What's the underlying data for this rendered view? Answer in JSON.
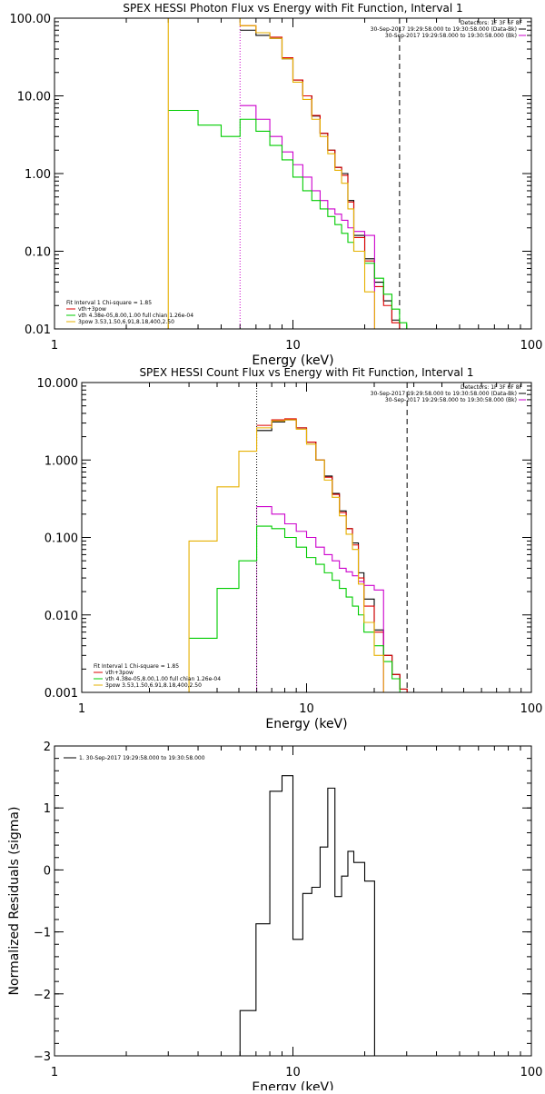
{
  "chart_data": [
    {
      "type": "line",
      "title": "SPEX HESSI Photon Flux vs Energy with Fit Function, Interval 1",
      "xlabel": "Energy (keV)",
      "ylabel": "",
      "xscale": "log",
      "yscale": "log",
      "xlim": [
        1,
        100
      ],
      "ylim": [
        0.01,
        100
      ],
      "xtick_labels": [
        {
          "v": 1,
          "t": "1"
        },
        {
          "v": 10,
          "t": "10"
        },
        {
          "v": 100,
          "t": "100"
        }
      ],
      "ytick_labels": [
        {
          "v": 0.01,
          "t": "0.01"
        },
        {
          "v": 0.1,
          "t": "0.10"
        },
        {
          "v": 1,
          "t": "1.00"
        },
        {
          "v": 10,
          "t": "10.00"
        },
        {
          "v": 100,
          "t": "100.00"
        }
      ],
      "edges": [
        3,
        4,
        5,
        6,
        7,
        8,
        9,
        10,
        11,
        12,
        13,
        14,
        15,
        16,
        17,
        18,
        20,
        22,
        24,
        26,
        28,
        30,
        32,
        34,
        36
      ],
      "vlines": [
        {
          "x": 6,
          "color": "#cc00cc",
          "style": "dotted"
        },
        {
          "x": 28,
          "color": "#000000",
          "style": "dashed"
        }
      ],
      "series": [
        {
          "color": "#000000",
          "x0": 6,
          "values": [
            70,
            60,
            55,
            30,
            16,
            10,
            5.5,
            3.3,
            2,
            1.2,
            1,
            0.45,
            0.16,
            0.08,
            0.04,
            0.023,
            0.013,
            0.008
          ]
        },
        {
          "color": "#dd0000",
          "x0": 6,
          "values": [
            80,
            65,
            57,
            31,
            16,
            10,
            5.6,
            3.3,
            2,
            1.2,
            0.95,
            0.43,
            0.15,
            0.075,
            0.035,
            0.02,
            0.012,
            0.008
          ]
        },
        {
          "color": "#cc00cc",
          "x0": 6,
          "values": [
            7.5,
            5,
            3,
            1.9,
            1.3,
            0.9,
            0.6,
            0.45,
            0.35,
            0.3,
            0.25,
            0.2,
            0.18,
            0.16,
            0.001
          ]
        },
        {
          "color": "#00cc00",
          "x0": 3,
          "values": [
            6.5,
            4.2,
            3,
            5,
            3.5,
            2.3,
            1.5,
            0.9,
            0.6,
            0.45,
            0.35,
            0.28,
            0.22,
            0.17,
            0.13,
            0.1,
            0.07,
            0.045,
            0.028,
            0.018,
            0.012
          ]
        },
        {
          "color": "#e6b000",
          "x0": 3,
          "drop_at_start": true,
          "values": [
            100,
            100,
            100,
            80,
            65,
            55,
            30,
            15,
            9,
            5,
            3,
            1.8,
            1.1,
            0.75,
            0.35,
            0.1,
            0.03,
            0.01,
            0.004
          ]
        }
      ],
      "legend_header": "Detectors: 1F 3F 6F 8F",
      "legend": [
        {
          "label": "30-Sep-2017 19:29:58.000 to 19:30:58.000 (Data-Bk)",
          "color": "#000000"
        },
        {
          "label": "30-Sep-2017 19:29:58.000 to 19:30:58.000 (Bk)",
          "color": "#cc00cc"
        }
      ],
      "fit_header": "Fit Interval 1   Chi-square = 1.85",
      "fit_legend": [
        {
          "label": "vth+3pow",
          "color": "#dd0000"
        },
        {
          "label": "vth 4.38e-05,8.00,1.00  full chian 1.26e-04",
          "color": "#00cc00"
        },
        {
          "label": "3pow 3.53,1.50,6.91,8.18,400,2.50",
          "color": "#e6b000"
        }
      ]
    },
    {
      "type": "line",
      "title": "SPEX HESSI Count Flux vs Energy with Fit Function, Interval 1",
      "xlabel": "Energy (keV)",
      "ylabel": "",
      "xscale": "log",
      "yscale": "log",
      "xlim": [
        1,
        100
      ],
      "ylim": [
        0.001,
        10
      ],
      "xtick_labels": [
        {
          "v": 1,
          "t": "1"
        },
        {
          "v": 10,
          "t": "10"
        },
        {
          "v": 100,
          "t": "100"
        }
      ],
      "ytick_labels": [
        {
          "v": 0.001,
          "t": "0.001"
        },
        {
          "v": 0.01,
          "t": "0.010"
        },
        {
          "v": 0.1,
          "t": "0.100"
        },
        {
          "v": 1,
          "t": "1.000"
        },
        {
          "v": 10,
          "t": "10.000"
        }
      ],
      "edges": [
        3,
        4,
        5,
        6,
        7,
        8,
        9,
        10,
        11,
        12,
        13,
        14,
        15,
        16,
        17,
        18,
        20,
        22,
        24,
        26,
        28,
        30,
        32,
        34,
        36
      ],
      "vlines": [
        {
          "x": 6,
          "color": "#000000",
          "style": "dotted"
        },
        {
          "x": 6,
          "color": "#cc00cc",
          "style": "dotted-low"
        },
        {
          "x": 28,
          "color": "#000000",
          "style": "dashed"
        }
      ],
      "series": [
        {
          "color": "#000000",
          "x0": 6,
          "values": [
            2.4,
            3.1,
            3.3,
            2.6,
            1.7,
            1,
            0.62,
            0.37,
            0.22,
            0.13,
            0.085,
            0.035,
            0.016,
            0.0064,
            0.003,
            0.0017,
            0.0011
          ]
        },
        {
          "color": "#dd0000",
          "x0": 6,
          "values": [
            2.8,
            3.3,
            3.4,
            2.6,
            1.7,
            1,
            0.6,
            0.36,
            0.21,
            0.13,
            0.08,
            0.03,
            0.013,
            0.006,
            0.003,
            0.0017,
            0.0011
          ]
        },
        {
          "color": "#cc00cc",
          "x0": 6,
          "values": [
            0.25,
            0.2,
            0.15,
            0.12,
            0.1,
            0.075,
            0.06,
            0.05,
            0.04,
            0.036,
            0.032,
            0.027,
            0.024,
            0.021,
            0.0005
          ]
        },
        {
          "color": "#00cc00",
          "x0": 3,
          "values": [
            0.005,
            0.022,
            0.05,
            0.14,
            0.13,
            0.1,
            0.075,
            0.055,
            0.045,
            0.035,
            0.028,
            0.022,
            0.017,
            0.013,
            0.01,
            0.006,
            0.004,
            0.0025,
            0.0015
          ]
        },
        {
          "color": "#e6b000",
          "x0": 3,
          "drop_at_start": true,
          "values": [
            0.09,
            0.45,
            1.3,
            2.6,
            3.2,
            3.3,
            2.5,
            1.6,
            1,
            0.55,
            0.33,
            0.19,
            0.11,
            0.07,
            0.025,
            0.008,
            0.003,
            0.0009
          ]
        }
      ],
      "legend_header": "Detectors: 1F 3F 6F 8F",
      "legend": [
        {
          "label": "30-Sep-2017 19:29:58.000 to 19:30:58.000 (Data-Bk)",
          "color": "#000000"
        },
        {
          "label": "30-Sep-2017 19:29:58.000 to 19:30:58.000 (Bk)",
          "color": "#cc00cc"
        }
      ],
      "fit_header": "Fit Interval 1   Chi-square = 1.85",
      "fit_legend": [
        {
          "label": "vth+3pow",
          "color": "#dd0000"
        },
        {
          "label": "vth 4.38e-05,8.00,1.00  full chian 1.26e-04",
          "color": "#00cc00"
        },
        {
          "label": "3pow 3.53,1.50,6.91,8.18,400,2.50",
          "color": "#e6b000"
        }
      ]
    },
    {
      "type": "line",
      "title": "",
      "xlabel": "Energy (keV)",
      "ylabel": "Normalized Residuals (sigma)",
      "xscale": "log",
      "yscale": "linear",
      "xlim": [
        1,
        100
      ],
      "ylim": [
        -3,
        2
      ],
      "xtick_labels": [
        {
          "v": 1,
          "t": "1"
        },
        {
          "v": 10,
          "t": "10"
        },
        {
          "v": 100,
          "t": "100"
        }
      ],
      "ytick_labels": [
        {
          "v": -3,
          "t": "−3"
        },
        {
          "v": -2,
          "t": "−2"
        },
        {
          "v": -1,
          "t": "−1"
        },
        {
          "v": 0,
          "t": "0"
        },
        {
          "v": 1,
          "t": "1"
        },
        {
          "v": 2,
          "t": "2"
        }
      ],
      "edges": [
        6,
        7,
        8,
        9,
        10,
        11,
        12,
        13,
        14,
        15,
        16,
        17,
        18,
        20,
        22,
        24,
        26,
        28
      ],
      "series": [
        {
          "color": "#000000",
          "x0": 6,
          "values": [
            -2.27,
            -0.87,
            1.27,
            1.52,
            -1.12,
            -0.38,
            -0.28,
            0.37,
            1.32,
            -0.43,
            -0.1,
            0.3,
            0.12,
            -0.18
          ]
        }
      ],
      "residual_start": -3.2,
      "residual_end": -3.2,
      "legend": [
        {
          "label": "1. 30-Sep-2017 19:29:58.000 to 19:30:58.000",
          "color": "#000000"
        }
      ]
    }
  ]
}
